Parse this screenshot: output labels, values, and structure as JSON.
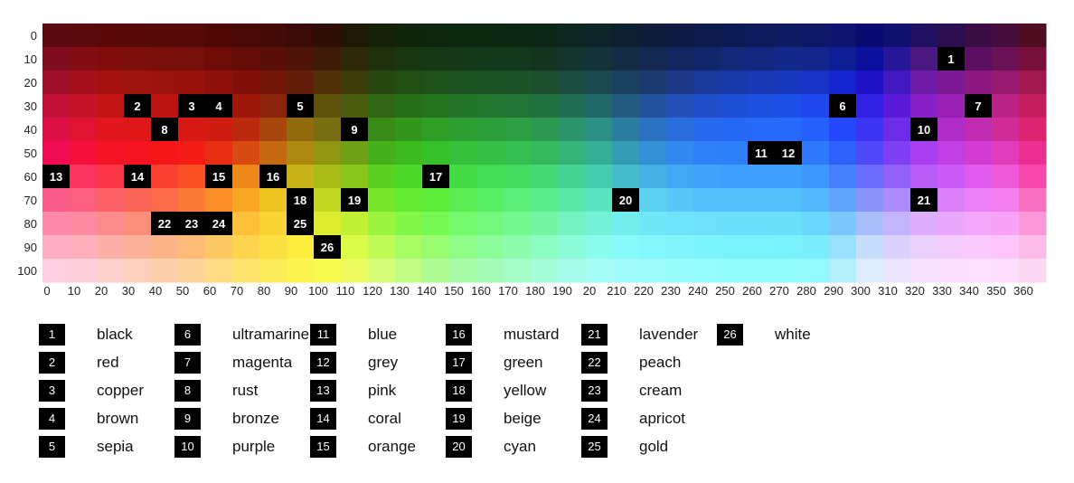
{
  "chart_data": {
    "type": "heatmap",
    "title": "",
    "xlabel": "",
    "ylabel": "",
    "x_ticks": [
      "0",
      "10",
      "20",
      "30",
      "40",
      "50",
      "60",
      "70",
      "80",
      "90",
      "100",
      "110",
      "120",
      "130",
      "140",
      "150",
      "160",
      "170",
      "180",
      "190",
      "20",
      "210",
      "220",
      "230",
      "240",
      "250",
      "260",
      "270",
      "280",
      "290",
      "300",
      "310",
      "320",
      "330",
      "340",
      "350",
      "360"
    ],
    "y_ticks": [
      "0",
      "10",
      "20",
      "30",
      "40",
      "50",
      "60",
      "70",
      "80",
      "90",
      "100"
    ],
    "rows": [
      [
        "#5a0a10",
        "#5a0a0c",
        "#5a0808",
        "#580a08",
        "#560a08",
        "#540a08",
        "#4e0806",
        "#4a0806",
        "#440a08",
        "#3a0a08",
        "#2e0e06",
        "#201806",
        "#142008",
        "#10240c",
        "#0e260e",
        "#0c2810",
        "#0c2810",
        "#0c2812",
        "#0e2616",
        "#0e2620",
        "#0e2428",
        "#0e2030",
        "#0e1c3a",
        "#0e1a44",
        "#0e1a4c",
        "#0e1a54",
        "#0e1a5c",
        "#0e1a62",
        "#0e1866",
        "#0e1470",
        "#0a0a70",
        "#101070",
        "#201060",
        "#2a0e50",
        "#3a0e44",
        "#460e3c",
        "#500c20"
      ],
      [
        "#7e0e20",
        "#820e14",
        "#800c0c",
        "#7c0e0c",
        "#780e0a",
        "#760e0a",
        "#6e0c08",
        "#640c08",
        "#5a1008",
        "#4e1408",
        "#3e1c08",
        "#2e2808",
        "#1e300c",
        "#183610",
        "#163814",
        "#143818",
        "#14381a",
        "#14381c",
        "#143420",
        "#14342e",
        "#143238",
        "#142c44",
        "#142850",
        "#142660",
        "#12266c",
        "#122878",
        "#122880",
        "#122888",
        "#12268c",
        "#101e96",
        "#0c0e9c",
        "#281698",
        "#4a1880",
        "#4e1070",
        "#5c1062",
        "#6a1256",
        "#761038"
      ],
      [
        "#a0102c",
        "#a4101c",
        "#a21010",
        "#9e1210",
        "#9a120e",
        "#98120c",
        "#8e100a",
        "#82100a",
        "#74160a",
        "#621e0a",
        "#503008",
        "#3e3c0a",
        "#284610",
        "#204e14",
        "#1e5218",
        "#1c5220",
        "#1c5224",
        "#1c5228",
        "#1c4e2e",
        "#1c4c40",
        "#1c4a4e",
        "#1c4060",
        "#1c3a70",
        "#1c3886",
        "#1a389a",
        "#1838aa",
        "#1838b4",
        "#1838be",
        "#1834c6",
        "#1424d0",
        "#2010c4",
        "#4418c0",
        "#6e1ca6",
        "#7c1894",
        "#8a1880",
        "#961a70",
        "#a0184e"
      ],
      [
        "#c01038",
        "#c41226",
        "#c21414",
        "#c01414",
        "#bc1412",
        "#b81410",
        "#ae140e",
        "#9e180c",
        "#8c240c",
        "#783e0a",
        "#5e520a",
        "#4a5a0e",
        "#306614",
        "#287018",
        "#247420",
        "#227428",
        "#22742e",
        "#227434",
        "#22703e",
        "#226c54",
        "#226868",
        "#225a80",
        "#22529c",
        "#2250b6",
        "#204ec8",
        "#1e4ed6",
        "#1e50e0",
        "#1e50e8",
        "#1e48ee",
        "#1c36f4",
        "#3022e0",
        "#5c1ad8",
        "#8820c8",
        "#9a20b4",
        "#aa209c",
        "#ba2286",
        "#c41e5e"
      ],
      [
        "#dc1044",
        "#e01430",
        "#e0161c",
        "#de1818",
        "#dc1616",
        "#d81814",
        "#ce1c10",
        "#bc2a0e",
        "#a8460e",
        "#906a0c",
        "#766e10",
        "#5c7812",
        "#3a8a18",
        "#32961c",
        "#2e9e26",
        "#2c9e32",
        "#2c9e3a",
        "#2c9e44",
        "#2c9850",
        "#2c946a",
        "#2c9084",
        "#2c7ca0",
        "#2c70c0",
        "#2a6cdc",
        "#2868ee",
        "#2668f6",
        "#2668f8",
        "#2668fa",
        "#2660fc",
        "#2448fc",
        "#3c34f0",
        "#6c2ce8",
        "#9c2cdc",
        "#b02cc8",
        "#c02cb0",
        "#d02c98",
        "#dc2470"
      ],
      [
        "#f00c54",
        "#f4103a",
        "#f41224",
        "#f41420",
        "#f41618",
        "#f21c14",
        "#e82e12",
        "#d84a12",
        "#c46812",
        "#ac8812",
        "#909612",
        "#70a016",
        "#46b01c",
        "#3cba20",
        "#36c02a",
        "#34c03a",
        "#34c044",
        "#34c050",
        "#34ba5c",
        "#34b47a",
        "#34b094",
        "#349cb4",
        "#3490d4",
        "#3288ee",
        "#3080f8",
        "#2e80fa",
        "#2e80fc",
        "#2e80fc",
        "#2e78fc",
        "#2e60fc",
        "#5048f8",
        "#7e3ef4",
        "#a83ef0",
        "#c03ee4",
        "#d23cd2",
        "#e03cbc",
        "#ec2e90"
      ],
      [
        "#f83070",
        "#fa3460",
        "#fa3648",
        "#fa3a3c",
        "#fa4030",
        "#fa5024",
        "#f86a1c",
        "#ee881a",
        "#dca218",
        "#c8b418",
        "#a8bc18",
        "#88c61c",
        "#5cd022",
        "#4cd828",
        "#46dc32",
        "#44dc44",
        "#44dc54",
        "#44dc60",
        "#44d874",
        "#44d294",
        "#44ccac",
        "#44bcca",
        "#44b0e4",
        "#42a8f6",
        "#40a2fc",
        "#3ea0fc",
        "#3ea0fc",
        "#3ea0fc",
        "#3e98fc",
        "#4480fc",
        "#6c6cfa",
        "#9262f8",
        "#b85cf8",
        "#cc5af8",
        "#e05af0",
        "#ee5ad8",
        "#f648aa"
      ],
      [
        "#fa5c8c",
        "#fc6080",
        "#fc6268",
        "#fc6658",
        "#fc6c48",
        "#fc7a38",
        "#fc8e2a",
        "#f8a824",
        "#eec420",
        "#dcd220",
        "#c2d820",
        "#a4dc24",
        "#78e42a",
        "#64ea30",
        "#5ced3a",
        "#5aee54",
        "#5aee66",
        "#5aee78",
        "#5aec8c",
        "#5ae8aa",
        "#5ae4c2",
        "#5adcdc",
        "#5ad2f0",
        "#58c8fa",
        "#56c2fc",
        "#54c0fc",
        "#54c0fc",
        "#54c0fc",
        "#54b8fc",
        "#60a4fc",
        "#8c94fa",
        "#ac8cfa",
        "#cc84fa",
        "#dc80fa",
        "#ec80f8",
        "#f47eec",
        "#fa70c0"
      ],
      [
        "#fc88aa",
        "#fc8aa0",
        "#fc8c8c",
        "#fc8e7c",
        "#fc926c",
        "#fc9c5c",
        "#fcae48",
        "#fcc03a",
        "#fad432",
        "#f0e030",
        "#dcec30",
        "#c2f034",
        "#9cf43e",
        "#84f648",
        "#78f852",
        "#74f86c",
        "#74f87e",
        "#74f890",
        "#74f6a4",
        "#74f4c0",
        "#74f2d6",
        "#72eeec",
        "#70e8f8",
        "#6ee4fc",
        "#6ce0fc",
        "#6ae0fc",
        "#6ae0fc",
        "#6ae0fc",
        "#6ad8fc",
        "#7cc8fc",
        "#aabefc",
        "#c4b4fc",
        "#dcaefc",
        "#eaa8fc",
        "#f4a8fc",
        "#f8a4f6",
        "#fc98d8"
      ],
      [
        "#fcaec4",
        "#fcb0bc",
        "#fcb0a8",
        "#fcb298",
        "#fcb488",
        "#fcbc78",
        "#fcc862",
        "#fcd44e",
        "#fce042",
        "#fcec3e",
        "#f0f63e",
        "#dcfa48",
        "#c0fc58",
        "#a8fc64",
        "#98fc70",
        "#90fc88",
        "#8cfc9a",
        "#8cfcac",
        "#8cfcc0",
        "#8cfcd8",
        "#8cfcec",
        "#88fafa",
        "#84f8fc",
        "#80f6fc",
        "#7cf4fc",
        "#7af4fc",
        "#7af4fc",
        "#7af2fc",
        "#7aeefc",
        "#98e0fc",
        "#c8dcfc",
        "#dad2fc",
        "#ead0fc",
        "#f4ccfc",
        "#facafc",
        "#fcc6fa",
        "#fcbce8"
      ],
      [
        "#fcd0e0",
        "#fcd0da",
        "#fcd0cc",
        "#fcd0bc",
        "#fcd0ac",
        "#fcd49c",
        "#fcdc84",
        "#fce46c",
        "#fcec5c",
        "#fcf450",
        "#f8fc50",
        "#ecfc60",
        "#d6fc78",
        "#c0fc86",
        "#b0fc94",
        "#a8fca8",
        "#a4fcb8",
        "#a4fcc8",
        "#a4fcd8",
        "#a4fce8",
        "#a4fcf4",
        "#a0fcfc",
        "#9cfcfc",
        "#98fcfc",
        "#94fcfc",
        "#92fcfc",
        "#92fcfc",
        "#92fcfc",
        "#92fafc",
        "#b4f0fc",
        "#e0ecfc",
        "#ece4fc",
        "#f6e2fc",
        "#fae0fc",
        "#fce0fc",
        "#fcdefc",
        "#fcd8f2"
      ]
    ],
    "markers": [
      {
        "label": "1",
        "col": 33,
        "row": 1
      },
      {
        "label": "2",
        "col": 3,
        "row": 3
      },
      {
        "label": "3",
        "col": 5,
        "row": 3
      },
      {
        "label": "4",
        "col": 6,
        "row": 3
      },
      {
        "label": "5",
        "col": 9,
        "row": 3
      },
      {
        "label": "6",
        "col": 29,
        "row": 3
      },
      {
        "label": "7",
        "col": 34,
        "row": 3
      },
      {
        "label": "8",
        "col": 4,
        "row": 4
      },
      {
        "label": "9",
        "col": 11,
        "row": 4
      },
      {
        "label": "10",
        "col": 32,
        "row": 4
      },
      {
        "label": "11",
        "col": 26,
        "row": 5
      },
      {
        "label": "12",
        "col": 27,
        "row": 5
      },
      {
        "label": "13",
        "col": 0,
        "row": 6
      },
      {
        "label": "14",
        "col": 3,
        "row": 6
      },
      {
        "label": "15",
        "col": 6,
        "row": 6
      },
      {
        "label": "16",
        "col": 8,
        "row": 6
      },
      {
        "label": "17",
        "col": 14,
        "row": 6
      },
      {
        "label": "18",
        "col": 9,
        "row": 7
      },
      {
        "label": "19",
        "col": 11,
        "row": 7
      },
      {
        "label": "20",
        "col": 21,
        "row": 7
      },
      {
        "label": "21",
        "col": 32,
        "row": 7
      },
      {
        "label": "22",
        "col": 4,
        "row": 8
      },
      {
        "label": "23",
        "col": 5,
        "row": 8
      },
      {
        "label": "24",
        "col": 6,
        "row": 8
      },
      {
        "label": "25",
        "col": 9,
        "row": 8
      },
      {
        "label": "26",
        "col": 10,
        "row": 9
      }
    ]
  },
  "legend": [
    {
      "num": "1",
      "name": "black"
    },
    {
      "num": "2",
      "name": "red"
    },
    {
      "num": "3",
      "name": "copper"
    },
    {
      "num": "4",
      "name": "brown"
    },
    {
      "num": "5",
      "name": "sepia"
    },
    {
      "num": "6",
      "name": "ultramarine"
    },
    {
      "num": "7",
      "name": "magenta"
    },
    {
      "num": "8",
      "name": "rust"
    },
    {
      "num": "9",
      "name": "bronze"
    },
    {
      "num": "10",
      "name": "purple"
    },
    {
      "num": "11",
      "name": "blue"
    },
    {
      "num": "12",
      "name": "grey"
    },
    {
      "num": "13",
      "name": "pink"
    },
    {
      "num": "14",
      "name": "coral"
    },
    {
      "num": "15",
      "name": "orange"
    },
    {
      "num": "16",
      "name": "mustard"
    },
    {
      "num": "17",
      "name": "green"
    },
    {
      "num": "18",
      "name": "yellow"
    },
    {
      "num": "19",
      "name": "beige"
    },
    {
      "num": "20",
      "name": "cyan"
    },
    {
      "num": "21",
      "name": "lavender"
    },
    {
      "num": "22",
      "name": "peach"
    },
    {
      "num": "23",
      "name": "cream"
    },
    {
      "num": "24",
      "name": "apricot"
    },
    {
      "num": "25",
      "name": "gold"
    },
    {
      "num": "26",
      "name": "white"
    }
  ]
}
